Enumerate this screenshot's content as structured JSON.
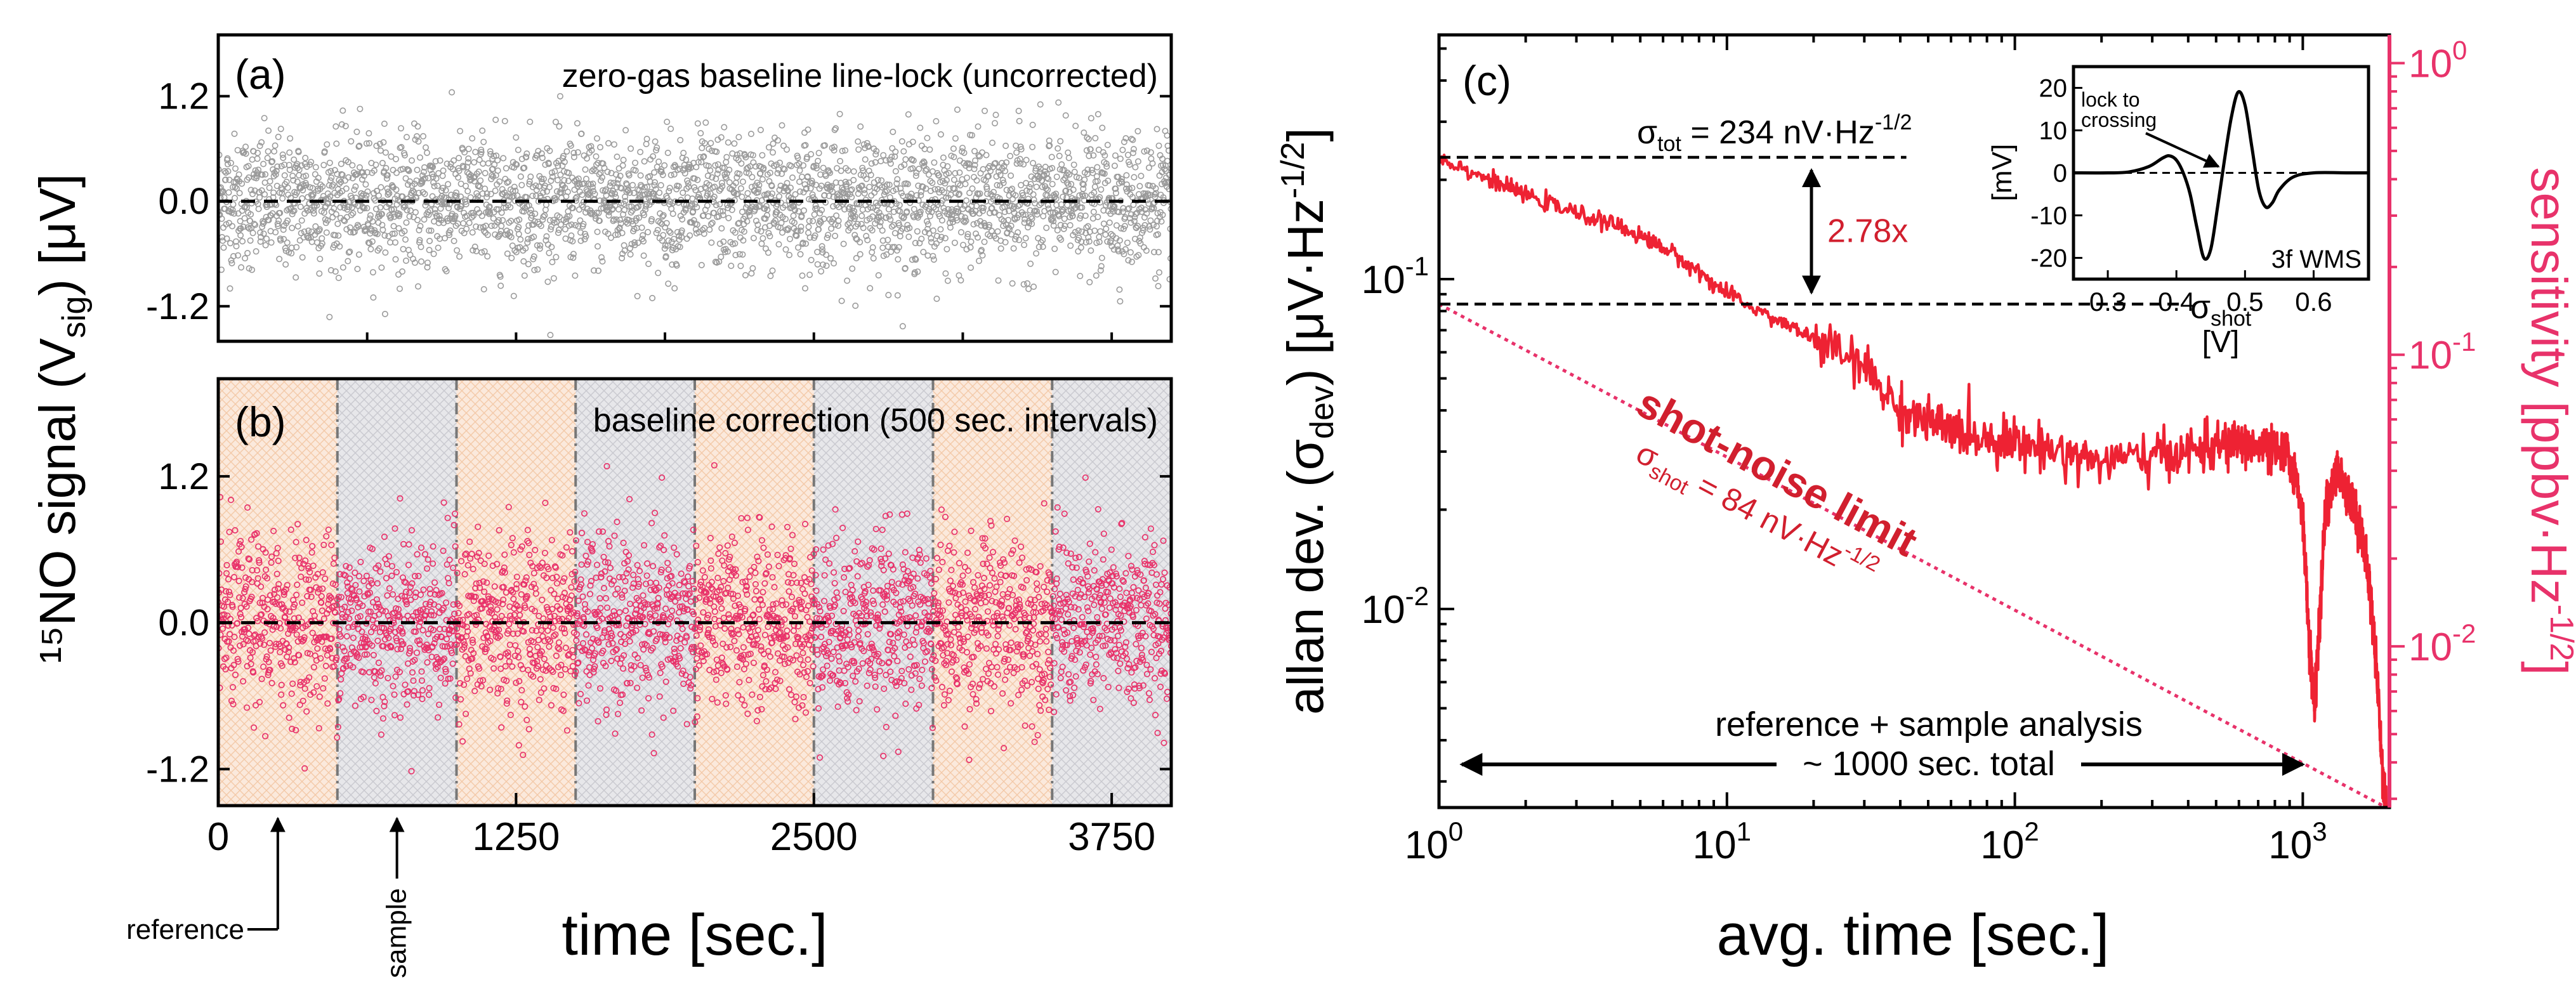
{
  "colors": {
    "panel_a_points": "#9a9a9a",
    "panel_b_points": "#e8326a",
    "allan_curve": "#ee2233",
    "shot_line": "#e8326a",
    "right_axis": "#e8326a",
    "annotation_red": "#d11f2e",
    "reference_fill": "#fbe9dc",
    "sample_fill": "#e7e7ea"
  },
  "chart_data": [
    {
      "id": "a",
      "type": "scatter",
      "panel_label": "(a)",
      "title": "zero-gas baseline line-lock (uncorrected)",
      "xlim": [
        0,
        4000
      ],
      "ylim": [
        -1.6,
        1.9
      ],
      "yticks": [
        "1.2",
        "0.0",
        "-1.2"
      ],
      "ytick_values": [
        1.2,
        0.0,
        -1.2
      ],
      "reference_line_y": 0.0,
      "n_points": 3000,
      "noise_sd": 0.38,
      "grid": false
    },
    {
      "id": "b",
      "type": "scatter",
      "panel_label": "(b)",
      "title": "baseline correction (500 sec. intervals)",
      "xlim": [
        0,
        4000
      ],
      "ylim": [
        -1.5,
        2.0
      ],
      "xticks": [
        "0",
        "1250",
        "2500",
        "3750"
      ],
      "xtick_values": [
        0,
        1250,
        2500,
        3750
      ],
      "yticks": [
        "1.2",
        "0.0",
        "-1.2"
      ],
      "ytick_values": [
        1.2,
        0.0,
        -1.2
      ],
      "xlabel": "time [sec.]",
      "shared_ylabel": "¹⁵NO signal (V",
      "shared_ylabel_sub": "sig",
      "shared_ylabel_end": ") [μV]",
      "interval_sec": 500,
      "interval_boundaries": [
        500,
        1000,
        1500,
        2000,
        2500,
        3000,
        3500
      ],
      "first_interval": "reference",
      "reference_label": "reference",
      "sample_label": "sample",
      "reference_arrow_x": 250,
      "sample_arrow_x": 750,
      "reference_line_y": 0.0,
      "n_points": 3000,
      "noise_sd": 0.36,
      "grid": false
    },
    {
      "id": "c",
      "type": "line",
      "panel_label": "(c)",
      "xscale": "log",
      "yscale": "log",
      "xlim": [
        1,
        2000
      ],
      "ylim": [
        0.0025,
        0.55
      ],
      "xticks": [
        {
          "base": "10",
          "exp": "0",
          "value": 1
        },
        {
          "base": "10",
          "exp": "1",
          "value": 10
        },
        {
          "base": "10",
          "exp": "2",
          "value": 100
        },
        {
          "base": "10",
          "exp": "3",
          "value": 1000
        }
      ],
      "yticks": [
        {
          "base": "10",
          "exp": "-2",
          "value": 0.01
        },
        {
          "base": "10",
          "exp": "-1",
          "value": 0.1
        }
      ],
      "xlabel": "avg. time [sec.]",
      "ylabel": "allan dev. (σ",
      "ylabel_sub": "dev",
      "ylabel_mid": ") [μV·Hz",
      "ylabel_sup": "-1/2",
      "ylabel_end": "]",
      "right_axis": {
        "label_main": "sensitivity [ppbv·Hz",
        "label_sup": "-1/2",
        "label_end": "]",
        "lim": [
          0.0028,
          1.25
        ],
        "ticks": [
          {
            "base": "10",
            "exp": "0",
            "value": 1
          },
          {
            "base": "10",
            "exp": "-1",
            "value": 0.1
          },
          {
            "base": "10",
            "exp": "-2",
            "value": 0.01
          }
        ]
      },
      "allan_series": {
        "name": "measured allan deviation",
        "x": [
          1,
          1.5,
          2,
          3,
          4,
          5,
          6,
          8,
          10,
          15,
          20,
          30,
          40,
          50,
          60,
          80,
          100,
          150,
          200,
          300,
          400,
          500,
          600,
          700,
          800,
          900,
          1000,
          1050,
          1100,
          1150,
          1200,
          1300,
          1400,
          1500,
          1600,
          1700,
          1800,
          1900,
          1950
        ],
        "y": [
          0.234,
          0.2,
          0.18,
          0.158,
          0.147,
          0.135,
          0.125,
          0.105,
          0.09,
          0.075,
          0.066,
          0.054,
          0.04,
          0.037,
          0.035,
          0.033,
          0.032,
          0.03,
          0.028,
          0.029,
          0.03,
          0.031,
          0.032,
          0.031,
          0.03,
          0.029,
          0.02,
          0.008,
          0.005,
          0.01,
          0.02,
          0.026,
          0.024,
          0.02,
          0.017,
          0.012,
          0.007,
          0.003,
          0.0025
        ]
      },
      "shot_noise_line": {
        "x": [
          1,
          1950
        ],
        "y": [
          0.084,
          0.0025
        ]
      },
      "sigma_tot_line": {
        "x_range": [
          1,
          2.0
        ],
        "y": 0.234,
        "label": "σ",
        "label_sub": "tot",
        "label_end": " = 234 nV·Hz",
        "label_sup": "-1/2"
      },
      "sigma_shot_line": {
        "x_range": [
          1,
          3.5
        ],
        "y": 0.084,
        "label": "σ",
        "label_sub": "shot"
      },
      "ratio_label": "2.78x",
      "shot_noise_label": "shot-noise limit",
      "shot_noise_value_main": "σ",
      "shot_noise_value_sub": "shot",
      "shot_noise_value_end": " = 84 nV·Hz",
      "shot_noise_value_sup": "-1/2",
      "analysis_label_1": "reference + sample analysis",
      "analysis_label_2": "~ 1000 sec. total",
      "analysis_arrow_x": [
        1.2,
        1000
      ],
      "grid": false
    },
    {
      "id": "c-inset",
      "type": "line",
      "title": "3f WMS",
      "xlabel": "[V]",
      "ylabel": "[mV]",
      "xlim": [
        0.25,
        0.68
      ],
      "ylim": [
        -25,
        25
      ],
      "xticks": [
        "0.3",
        "0.4",
        "0.5",
        "0.6"
      ],
      "xtick_values": [
        0.3,
        0.4,
        0.5,
        0.6
      ],
      "yticks": [
        "20",
        "10",
        "0",
        "-10",
        "-20"
      ],
      "ytick_values": [
        20,
        10,
        0,
        -10,
        -20
      ],
      "x": [
        0.25,
        0.3,
        0.33,
        0.36,
        0.38,
        0.39,
        0.4,
        0.41,
        0.42,
        0.43,
        0.44,
        0.45,
        0.46,
        0.47,
        0.48,
        0.49,
        0.5,
        0.51,
        0.52,
        0.53,
        0.54,
        0.55,
        0.57,
        0.6,
        0.65,
        0.68
      ],
      "y": [
        0,
        0,
        0.2,
        1.5,
        3.5,
        4,
        3,
        0,
        -5,
        -13,
        -20,
        -18,
        -8,
        3,
        13,
        19,
        16,
        6,
        -4,
        -8,
        -7,
        -4,
        -1,
        0,
        0,
        0
      ],
      "lock_label_1": "lock to",
      "lock_label_2": "crossing",
      "lock_point": [
        0.465,
        0
      ]
    }
  ]
}
